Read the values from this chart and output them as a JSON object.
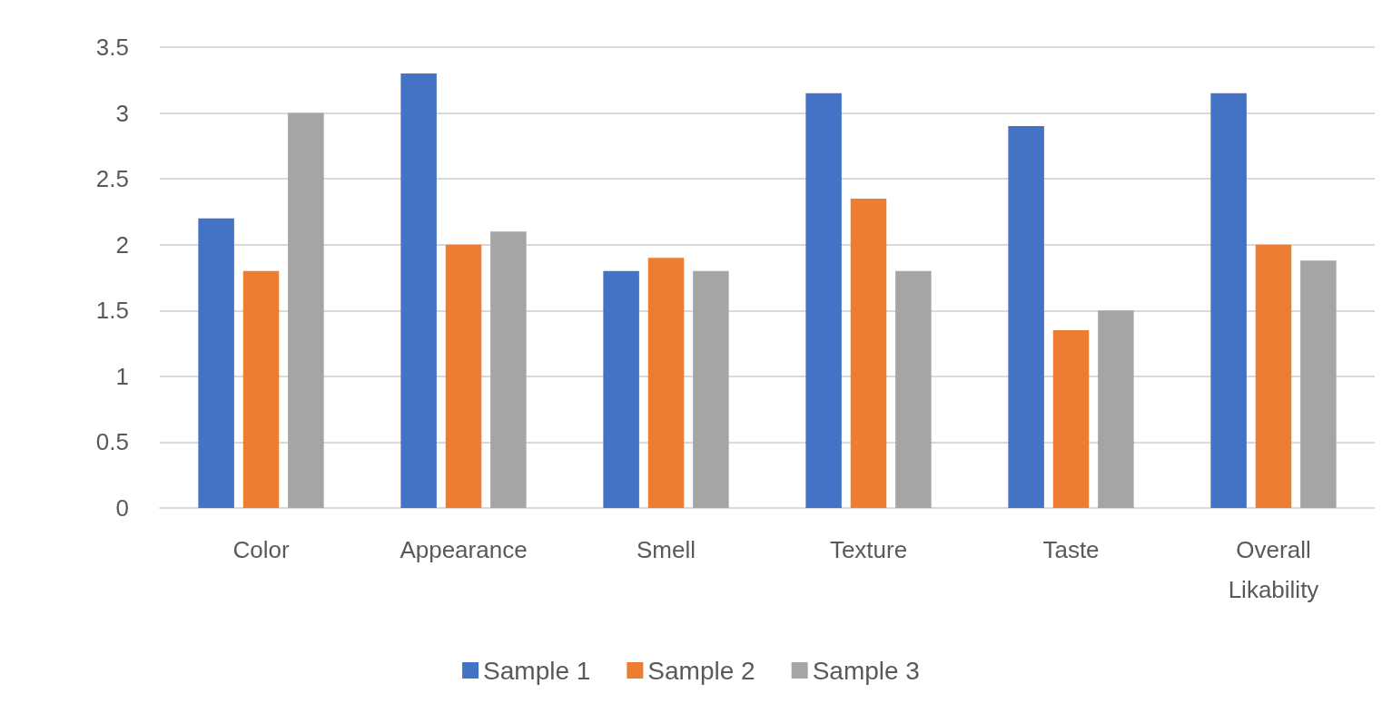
{
  "chart_data": {
    "type": "bar",
    "categories": [
      "Color",
      "Appearance",
      "Smell",
      "Texture",
      "Taste",
      "Overall\nLikability"
    ],
    "series": [
      {
        "name": "Sample 1",
        "color": "#4472c4",
        "values": [
          2.2,
          3.3,
          1.8,
          3.15,
          2.9,
          3.15
        ]
      },
      {
        "name": "Sample 2",
        "color": "#ed7d31",
        "values": [
          1.8,
          2.0,
          1.9,
          2.35,
          1.35,
          2.0
        ]
      },
      {
        "name": "Sample 3",
        "color": "#a5a5a5",
        "values": [
          3.0,
          2.1,
          1.8,
          1.8,
          1.5,
          1.88
        ]
      }
    ],
    "ylim": [
      0,
      3.5
    ],
    "yticks": [
      0,
      0.5,
      1,
      1.5,
      2,
      2.5,
      3,
      3.5
    ],
    "grid": "y",
    "legend": "bottom"
  }
}
